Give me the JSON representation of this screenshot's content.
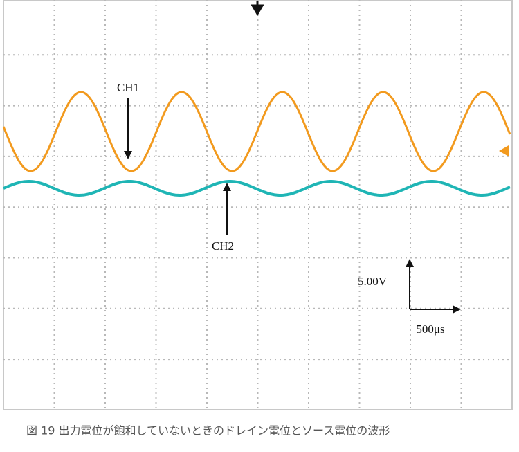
{
  "labels": {
    "ch1": "CH1",
    "ch2": "CH2",
    "volts_per_div": "5.00V",
    "time_per_div": "500μs"
  },
  "caption": "図 19 出力電位が飽和していないときのドレイン電位とソース電位の波形"
}
